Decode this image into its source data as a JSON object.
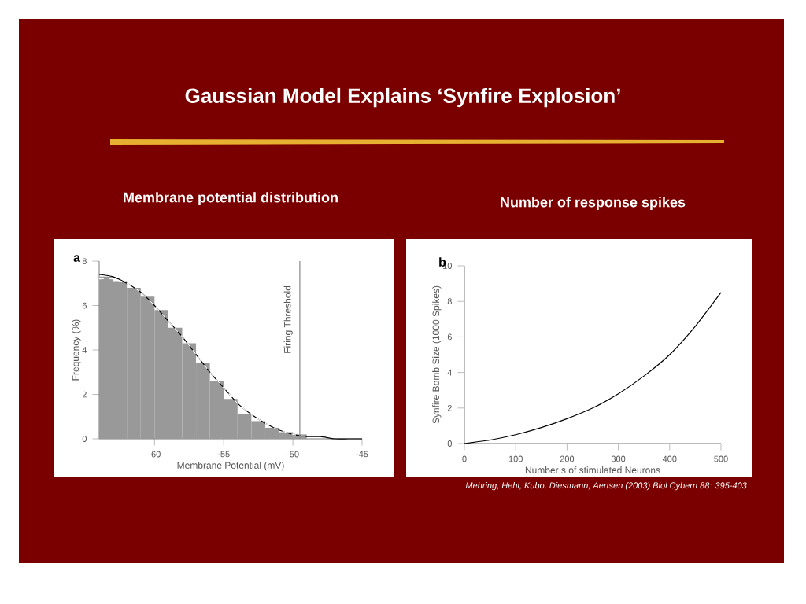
{
  "chart_data": [
    {
      "type": "other",
      "title": "Gaussian Model Explains ‘Synfire Explosion’"
    },
    {
      "type": "histogram",
      "title": "Membrane potential distribution",
      "xlabel": "Membrane Potential (mV)",
      "ylabel": "Frequency (%)",
      "color": "#999999",
      "bins": [
        -64,
        -63,
        -62,
        -61,
        -60,
        -59,
        -58,
        -57,
        -56,
        -55,
        -54,
        -53,
        -52,
        -51,
        -50,
        -49
      ],
      "values": [
        7.3,
        7.1,
        6.8,
        6.4,
        5.8,
        5.0,
        4.3,
        3.4,
        2.6,
        1.8,
        1.1,
        0.8,
        0.5,
        0.3,
        0.2
      ],
      "series": [
        {
          "type": "line",
          "color": "#000000",
          "line_style": "solid",
          "x": [
            -64,
            -63,
            -62,
            -61,
            -60,
            -59,
            -58,
            -57,
            -56,
            -55,
            -54,
            -53,
            -52,
            -51,
            -50,
            -49,
            -48,
            -47,
            -46,
            -45
          ],
          "values": [
            7.4,
            7.3,
            7.0,
            6.6,
            6.0,
            5.3,
            4.6,
            3.8,
            3.0,
            2.3,
            1.6,
            1.1,
            0.7,
            0.4,
            0.2,
            0.1,
            0.1,
            0,
            0,
            0
          ]
        },
        {
          "type": "line",
          "color": "#ffffff",
          "line_style": "dashed",
          "x": [
            -64,
            -63,
            -62,
            -61,
            -60,
            -59,
            -58,
            -57,
            -56,
            -55,
            -54,
            -53,
            -52,
            -51,
            -50,
            -49
          ],
          "values": [
            7.2,
            7.2,
            7.0,
            6.6,
            6.0,
            5.3,
            4.6,
            3.8,
            3.0,
            2.3,
            1.6,
            1.1,
            0.7,
            0.4,
            0.2,
            0.1
          ]
        }
      ],
      "xlim": [
        -64,
        -45
      ],
      "ylim": [
        0,
        8
      ],
      "xticks": [
        -60,
        -55,
        -50,
        -45
      ],
      "yticks": [
        0,
        2,
        4,
        6,
        8
      ],
      "ref_lines": [
        {
          "axis": "x",
          "value": -49.5,
          "label": "Firing Threshold",
          "color": "#888888"
        }
      ],
      "annotations": [
        "a"
      ]
    },
    {
      "type": "line",
      "title": "Number of response spikes",
      "xlabel": "Number s of stimulated Neurons",
      "ylabel": "Synfire Bomb Size (1000 Spikes)",
      "color": "#000000",
      "x": [
        0,
        25,
        50,
        100,
        150,
        200,
        250,
        300,
        350,
        400,
        450,
        500
      ],
      "values": [
        0,
        0.1,
        0.2,
        0.5,
        0.9,
        1.4,
        2.0,
        2.8,
        3.8,
        5.0,
        6.6,
        8.5
      ],
      "xlim": [
        0,
        500
      ],
      "ylim": [
        0,
        10
      ],
      "xticks": [
        0,
        100,
        200,
        300,
        400,
        500
      ],
      "yticks": [
        0,
        2,
        4,
        6,
        8,
        10
      ],
      "annotations": [
        "b",
        "Mehring, Hehl, Kubo, Diesmann, Aertsen (2003) Biol Cybern 88: 395-403"
      ]
    }
  ]
}
